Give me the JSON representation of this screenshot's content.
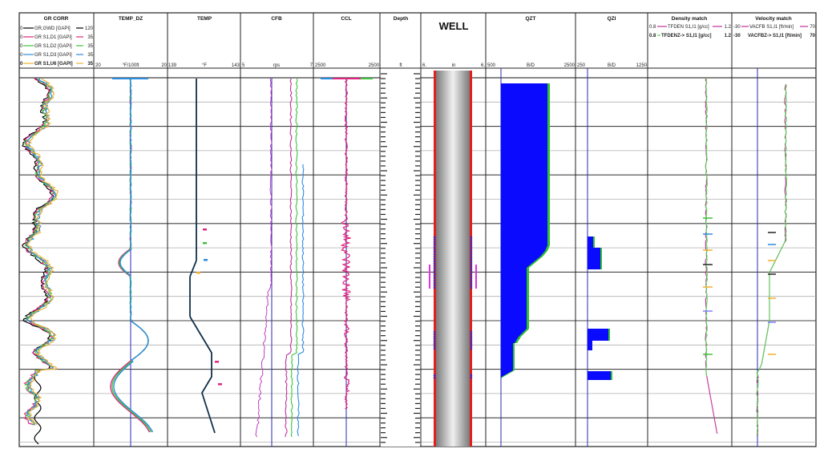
{
  "chart_data": {
    "type": "line",
    "title": "Well log composite",
    "depth_axis": {
      "label": "Depth",
      "unit": "ft",
      "grid": true
    },
    "tracks": [
      {
        "name": "GR CORR",
        "curves": [
          {
            "name": "GR,GWD [GAPI]",
            "min": 0,
            "max": 120,
            "color": "#000000"
          },
          {
            "name": "GR S1,D1 [GAPI]",
            "min": 0,
            "max": 35,
            "color": "#e0267f"
          },
          {
            "name": "GR S1,D2 [GAPI]",
            "min": 0,
            "max": 35,
            "color": "#3cc43c"
          },
          {
            "name": "GR S1,D3 [GAPI]",
            "min": 0,
            "max": 35,
            "color": "#2b8ce0"
          },
          {
            "name": "GR S1,U6 [GAPI]",
            "min": 0,
            "max": 35,
            "color": "#f0b030",
            "bold": true
          }
        ]
      },
      {
        "name": "TEMP_DZ",
        "scale_min": "20",
        "unit": "°F/100ft",
        "scale_max": "20"
      },
      {
        "name": "TEMP",
        "scale_min": "139",
        "unit": "°F",
        "scale_max": "143"
      },
      {
        "name": "CFB",
        "scale_min": "5",
        "unit": "rps",
        "scale_max": "7"
      },
      {
        "name": "CCL",
        "scale_min": "2500",
        "unit": "",
        "scale_max": "2500"
      },
      {
        "name": "Depth",
        "unit": "ft"
      },
      {
        "name": "WELL",
        "scale_min": "6.",
        "unit": "in",
        "scale_max": "6."
      },
      {
        "name": "QZT",
        "scale_min": "500",
        "unit": "B/D",
        "scale_max": "2500",
        "profile_fraction_of_width": [
          0.62,
          0.62,
          0.62,
          0.62,
          0.62,
          0.62,
          0.55,
          0.32,
          0.32,
          0.32,
          0.15,
          0.0
        ],
        "depth_fraction": [
          0.0,
          0.2,
          0.4,
          0.5,
          0.55,
          0.6,
          0.63,
          0.68,
          0.8,
          0.85,
          0.9,
          0.93
        ]
      },
      {
        "name": "QZI",
        "scale_min": "250",
        "unit": "B/D",
        "scale_max": "1250",
        "bars": [
          {
            "top": 0.43,
            "bottom": 0.47,
            "value": 0.08
          },
          {
            "top": 0.47,
            "bottom": 0.52,
            "value": 0.18
          },
          {
            "top": 0.685,
            "bottom": 0.725,
            "value": 0.27
          },
          {
            "top": 0.725,
            "bottom": 0.76,
            "value": 0.06
          },
          {
            "top": 0.815,
            "bottom": 0.84,
            "value": 0.32
          }
        ]
      },
      {
        "name": "Density match",
        "curves": [
          {
            "name": "TFDEN S1,I1 [g/cc]",
            "min": 0.8,
            "max": 1.2,
            "color": "#c0309a"
          },
          {
            "name": "TFDENZ-> S1,I1 [g/cc]",
            "min": 0.8,
            "max": 1.2,
            "color": "#55d655",
            "bold": true
          }
        ]
      },
      {
        "name": "Velocity match",
        "curves": [
          {
            "name": "VACFB S1,I1 [ft/min]",
            "min": -30,
            "max": 70,
            "color": "#c0309a"
          },
          {
            "name": "VACFBZ-> S1,I1 [ft/min]",
            "min": -30,
            "max": 70,
            "color": "#55d655",
            "bold": true
          }
        ]
      }
    ]
  },
  "header": {
    "gr": {
      "title": "GR CORR",
      "curves": [
        {
          "min": "0",
          "label": "GR,GWD [GAPI]",
          "max": "120"
        },
        {
          "min": "0",
          "label": "GR S1,D1 [GAPI]",
          "max": "35"
        },
        {
          "min": "0",
          "label": "GR S1,D2 [GAPI]",
          "max": "35"
        },
        {
          "min": "0",
          "label": "GR S1,D3 [GAPI]",
          "max": "35"
        },
        {
          "min": "0",
          "label": "GR S1,U6 [GAPI]",
          "max": "35"
        }
      ]
    },
    "tempdz": {
      "title": "TEMP_DZ",
      "min": "20",
      "unit": "°F/100ft",
      "max": "20"
    },
    "temp": {
      "title": "TEMP",
      "min": "139",
      "unit": "°F",
      "max": "143"
    },
    "cfb": {
      "title": "CFB",
      "min": "5",
      "unit": "rps",
      "max": "7"
    },
    "ccl": {
      "title": "CCL",
      "min": "2500",
      "unit": "",
      "max": "2500"
    },
    "depth": {
      "title": "Depth",
      "unit": "ft"
    },
    "well": {
      "title": "WELL",
      "min": "6.",
      "unit": "in",
      "max": "6."
    },
    "qzt": {
      "title": "QZT",
      "min": "500",
      "unit": "B/D",
      "max": "2500"
    },
    "qzi": {
      "title": "QZI",
      "min": "250",
      "unit": "B/D",
      "max": "1250"
    },
    "density": {
      "title": "Density match",
      "c1": {
        "min": "0.8",
        "label": "TFDEN S1,I1 [g/cc]",
        "max": "1.2"
      },
      "c2": {
        "min": "0.8",
        "label": "TFDENZ-> S1,I1 [g/cc]",
        "max": "1.2"
      }
    },
    "velocity": {
      "title": "Velocity match",
      "c1": {
        "min": "-30",
        "label": "VACFB S1,I1 [ft/min]",
        "max": "70"
      },
      "c2": {
        "min": "-30",
        "label": "VACFBZ-> S1,I1 [ft/min]",
        "max": "70"
      }
    }
  },
  "colors": {
    "grid_major": "#333333",
    "grid_minor": "#aaaaaa",
    "ref_line": "#2a2ab0",
    "qzt_fill": "#0a0aff",
    "qzt_edge": "#2ec02e",
    "casing": "#e02020",
    "perf": "#3030d0",
    "packer": "#e030e0"
  }
}
